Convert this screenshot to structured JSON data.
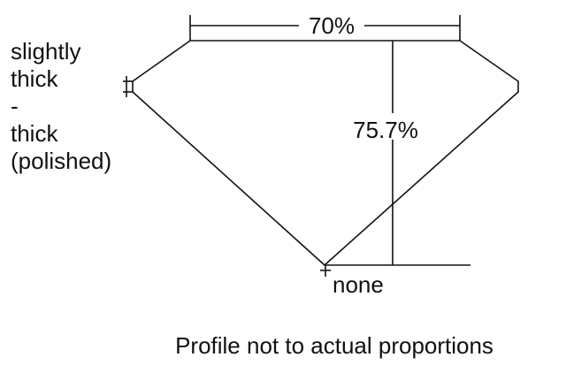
{
  "girdle_label": [
    "slightly",
    "thick",
    "-",
    "thick",
    "(polished)"
  ],
  "culet_label": "none",
  "table_percent": "70%",
  "depth_percent": "75.7%",
  "caption": "Profile not to actual proportions",
  "line_color": "#111111"
}
